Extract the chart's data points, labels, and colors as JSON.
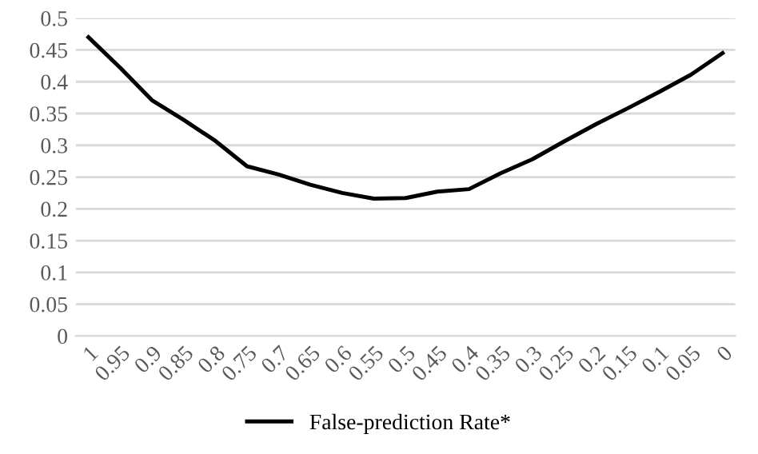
{
  "chart_data": {
    "type": "line",
    "categories": [
      "1",
      "0.95",
      "0.9",
      "0.85",
      "0.8",
      "0.75",
      "0.7",
      "0.65",
      "0.6",
      "0.55",
      "0.5",
      "0.45",
      "0.4",
      "0.35",
      "0.3",
      "0.25",
      "0.2",
      "0.15",
      "0.1",
      "0.05",
      "0"
    ],
    "series": [
      {
        "name": "False-prediction Rate*",
        "color": "#000000",
        "values": [
          0.47,
          0.422,
          0.371,
          0.34,
          0.307,
          0.267,
          0.254,
          0.238,
          0.225,
          0.216,
          0.217,
          0.227,
          0.231,
          0.256,
          0.278,
          0.306,
          0.333,
          0.358,
          0.384,
          0.411,
          0.445
        ]
      }
    ],
    "ylim": [
      0,
      0.5
    ],
    "yticks": [
      0,
      0.05,
      0.1,
      0.15,
      0.2,
      0.25,
      0.3,
      0.35,
      0.4,
      0.45,
      0.5
    ],
    "grid": "y",
    "legend": "bottom",
    "marker": "none",
    "line_style": "solid"
  }
}
